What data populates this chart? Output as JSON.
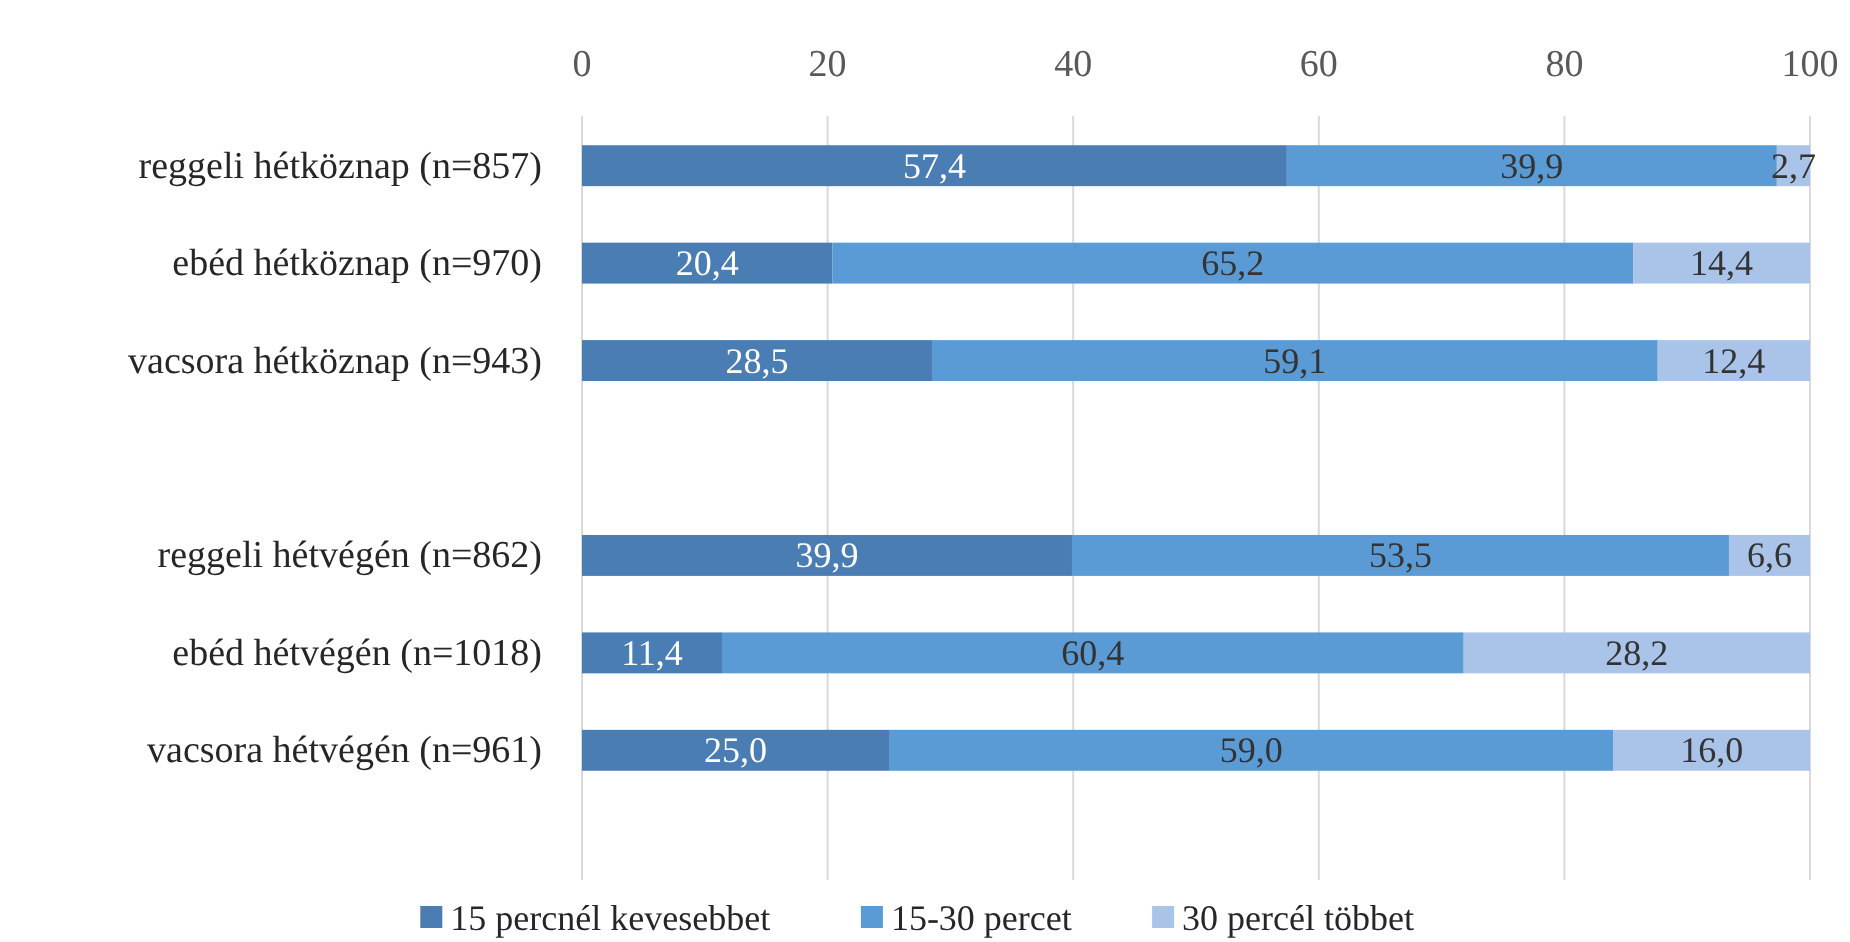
{
  "chart_data": {
    "type": "bar",
    "orientation": "horizontal",
    "stacked": true,
    "categories": [
      "reggeli hétköznap (n=857)",
      "ebéd hétköznap (n=970)",
      "vacsora hétköznap (n=943)",
      null,
      "reggeli hétvégén (n=862)",
      "ebéd hétvégén (n=1018)",
      "vacsora hétvégén (n=961)"
    ],
    "series": [
      {
        "name": "15 percnél kevesebbet",
        "color": "#4a7db4",
        "values": [
          57.4,
          20.4,
          28.5,
          null,
          39.9,
          11.4,
          25.0
        ],
        "value_labels": [
          "57,4",
          "20,4",
          "28,5",
          null,
          "39,9",
          "11,4",
          "25,0"
        ]
      },
      {
        "name": "15-30 percet",
        "color": "#5b9bd5",
        "values": [
          39.9,
          65.2,
          59.1,
          null,
          53.5,
          60.4,
          59.0
        ],
        "value_labels": [
          "39,9",
          "65,2",
          "59,1",
          null,
          "53,5",
          "60,4",
          "59,0"
        ]
      },
      {
        "name": "30 percél többet",
        "color": "#a9c4e8",
        "values": [
          2.7,
          14.4,
          12.4,
          null,
          6.6,
          28.2,
          16.0
        ],
        "value_labels": [
          "2,7",
          "14,4",
          "12,4",
          null,
          "6,6",
          "28,2",
          "16,0"
        ]
      }
    ],
    "xlim": [
      0,
      100
    ],
    "xticks": [
      0,
      20,
      40,
      60,
      80,
      100
    ],
    "grid": "x",
    "legend": "bottom"
  }
}
